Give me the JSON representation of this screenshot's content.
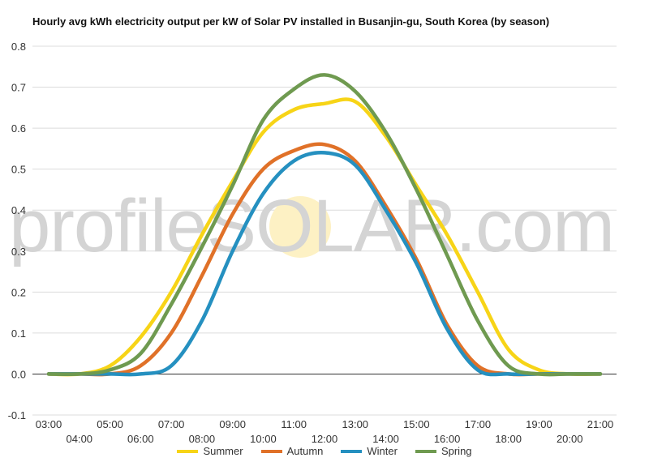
{
  "chart_data": {
    "type": "line",
    "title": "Hourly avg kWh electricity output per kW of Solar PV installed in Busanjin-gu, South Korea (by season)",
    "watermark": "profileSOLAR.com",
    "x": [
      "03:00",
      "04:00",
      "05:00",
      "06:00",
      "07:00",
      "08:00",
      "09:00",
      "10:00",
      "11:00",
      "12:00",
      "13:00",
      "14:00",
      "15:00",
      "16:00",
      "17:00",
      "18:00",
      "19:00",
      "20:00",
      "21:00"
    ],
    "x_ticks_top": [
      "03:00",
      "05:00",
      "07:00",
      "09:00",
      "11:00",
      "13:00",
      "15:00",
      "17:00",
      "19:00",
      "21:00"
    ],
    "x_ticks_bottom": [
      "04:00",
      "06:00",
      "08:00",
      "10:00",
      "12:00",
      "14:00",
      "16:00",
      "18:00",
      "20:00"
    ],
    "y_ticks": [
      "0.8",
      "0.7",
      "0.6",
      "0.5",
      "0.4",
      "0.3",
      "0.2",
      "0.1",
      "0.0",
      "-0.1"
    ],
    "ylim": [
      -0.1,
      0.8
    ],
    "grid": true,
    "legend_position": "bottom",
    "series": [
      {
        "name": "Summer",
        "color": "#f7d417",
        "values": [
          0.0,
          0.0,
          0.02,
          0.09,
          0.2,
          0.34,
          0.47,
          0.59,
          0.645,
          0.66,
          0.665,
          0.58,
          0.46,
          0.34,
          0.2,
          0.06,
          0.01,
          0.0,
          0.0
        ]
      },
      {
        "name": "Autumn",
        "color": "#e07128",
        "values": [
          0.0,
          0.0,
          0.0,
          0.02,
          0.1,
          0.24,
          0.39,
          0.5,
          0.545,
          0.56,
          0.52,
          0.41,
          0.28,
          0.12,
          0.02,
          0.0,
          0.0,
          0.0,
          0.0
        ]
      },
      {
        "name": "Winter",
        "color": "#2590c0",
        "values": [
          0.0,
          0.0,
          0.0,
          0.0,
          0.02,
          0.13,
          0.3,
          0.44,
          0.52,
          0.54,
          0.51,
          0.4,
          0.27,
          0.11,
          0.01,
          0.0,
          0.0,
          0.0,
          0.0
        ]
      },
      {
        "name": "Spring",
        "color": "#6f9a50",
        "values": [
          0.0,
          0.0,
          0.01,
          0.05,
          0.17,
          0.31,
          0.46,
          0.62,
          0.695,
          0.73,
          0.69,
          0.59,
          0.45,
          0.29,
          0.13,
          0.02,
          0.0,
          0.0,
          0.0
        ]
      }
    ]
  }
}
